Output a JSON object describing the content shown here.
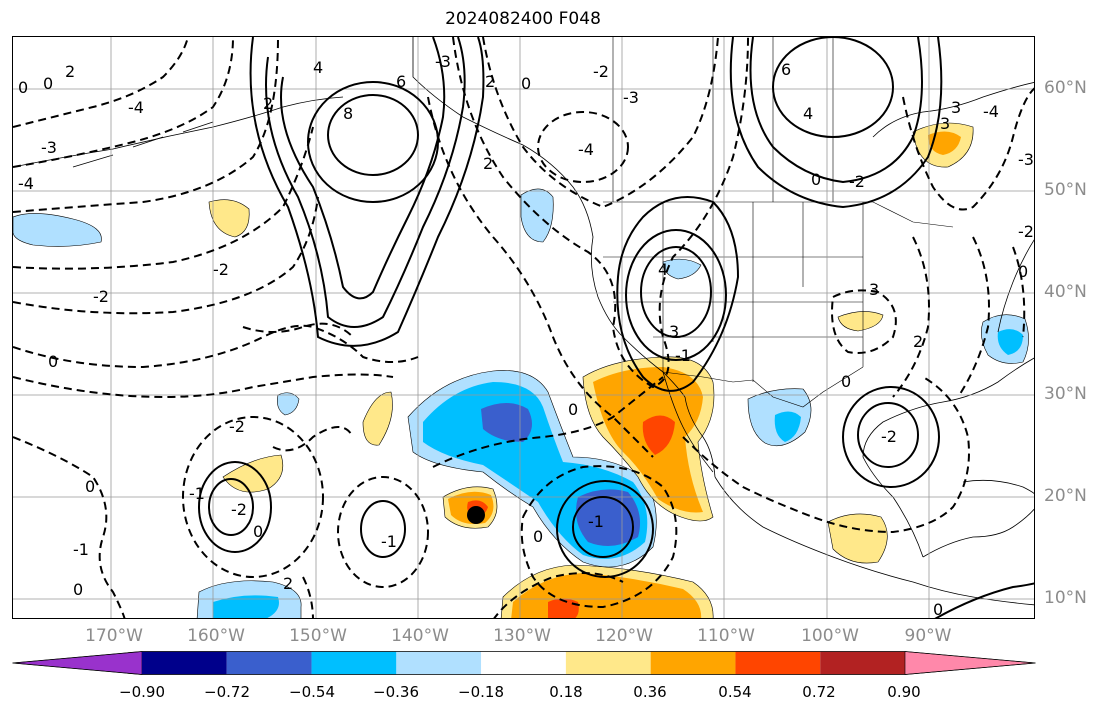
{
  "title": "2024082400 F048",
  "lat_labels": [
    "60°N",
    "50°N",
    "40°N",
    "30°N",
    "20°N",
    "10°N"
  ],
  "lon_labels": [
    "170°W",
    "160°W",
    "150°W",
    "140°W",
    "130°W",
    "120°W",
    "110°W",
    "100°W",
    "90°W"
  ],
  "colorbar": {
    "colors": [
      "#9932cc",
      "#00008b",
      "#3a5fcd",
      "#00bfff",
      "#b0e0ff",
      "#ffffff",
      "#ffe88a",
      "#ffa500",
      "#ff4500",
      "#b22222",
      "#ff88aa"
    ],
    "tick_labels": [
      "−0.90",
      "−0.72",
      "−0.54",
      "−0.36",
      "−0.18",
      "0.18",
      "0.36",
      "0.54",
      "0.72",
      "0.90"
    ]
  },
  "contour_labels": [
    "0",
    "0",
    "2",
    "-4",
    "-3",
    "-4",
    "4",
    "2",
    "6",
    "8",
    "-2",
    "-3",
    "2",
    "0",
    "-4",
    "-2",
    "-3",
    "6",
    "4",
    "0",
    "-2",
    "3",
    "-4",
    "-3",
    "-2",
    "0",
    "3",
    "4",
    "3",
    "-1",
    "0",
    "-2",
    "0",
    "-1",
    "2",
    "0",
    "-1",
    "-2",
    "0",
    "-2",
    "0",
    "-1",
    "-1",
    "-2",
    "0",
    "2",
    "3",
    "2",
    "0",
    "0"
  ],
  "marker": "storm center"
}
